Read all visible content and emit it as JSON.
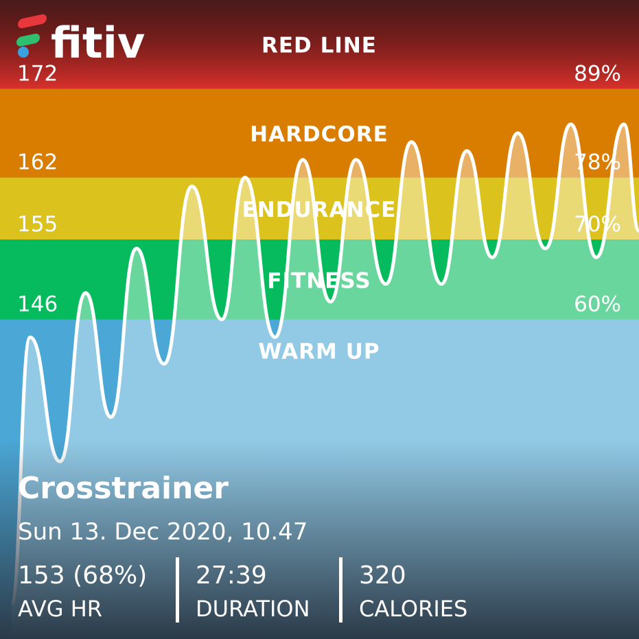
{
  "logo": "fitiv",
  "zones": [
    {
      "name": "RED LINE",
      "min_hr": 172,
      "percent": "89%",
      "color": "#d8312c"
    },
    {
      "name": "HARDCORE",
      "min_hr": 162,
      "percent": "78%",
      "color": "#d97d00"
    },
    {
      "name": "ENDURANCE",
      "min_hr": 155,
      "percent": "70%",
      "color": "#dcc21c"
    },
    {
      "name": "FITNESS",
      "min_hr": 146,
      "percent": "60%",
      "color": "#05bb5e"
    },
    {
      "name": "WARM UP",
      "color": "#4aa7d6"
    }
  ],
  "heart_rate": {
    "x": [
      0.5,
      1.3,
      2.6,
      3.7,
      4.8,
      5.9,
      7.1,
      8.3,
      9.6,
      10.6,
      11.9,
      13.1,
      14.3,
      15.4,
      16.7,
      17.8,
      19.1,
      20.2,
      21.3,
      22.4,
      23.6,
      24.7,
      25.8,
      27.0,
      27.65
    ],
    "values": [
      114,
      144,
      130,
      149,
      135,
      154,
      141,
      161,
      146,
      162,
      144,
      164,
      148,
      164,
      150,
      166,
      150,
      165,
      153,
      167,
      154,
      168,
      153,
      168,
      156
    ],
    "xlim": [
      0,
      27.65
    ],
    "ylim": [
      110,
      182
    ],
    "color": "#ffffff"
  },
  "workout": {
    "name": "Crosstrainer",
    "date": "Sun 13. Dec 2020, 10.47",
    "stats": [
      {
        "value": "153 (68%)",
        "label": "AVG HR"
      },
      {
        "value": "27:39",
        "label": "DURATION"
      },
      {
        "value": "320",
        "label": "CALORIES"
      }
    ]
  }
}
